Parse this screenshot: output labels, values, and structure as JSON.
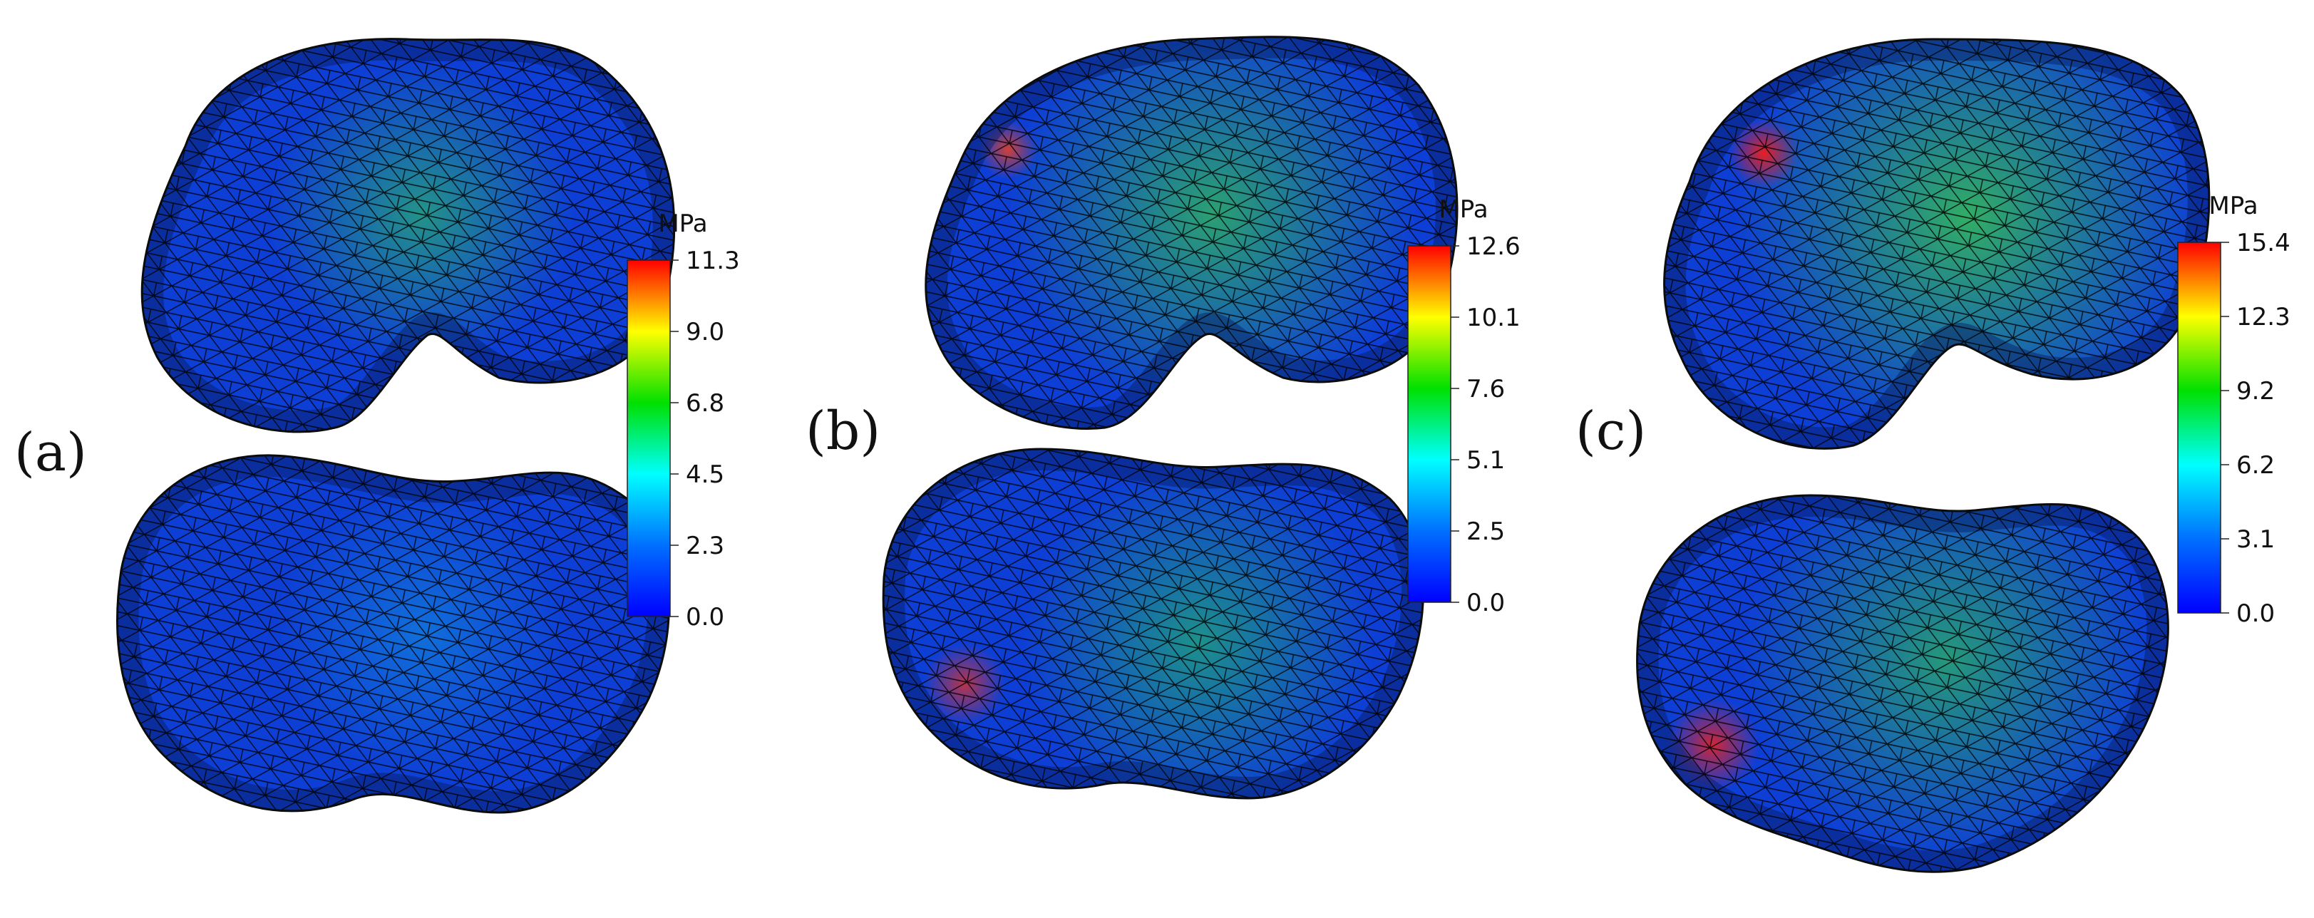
{
  "panels": [
    {
      "label": "(a)",
      "unit": "MPa",
      "ticks": [
        "11.3",
        "9.0",
        "6.8",
        "4.5",
        "2.3",
        "0.0"
      ],
      "max": 11.3,
      "hotspots": {
        "femur": [
          [
            0.55,
            0.45,
            0.26,
            "#36d64a",
            0.55
          ]
        ],
        "tibia": [
          [
            0.55,
            0.45,
            0.25,
            "#19c7e0",
            0.35
          ]
        ]
      }
    },
    {
      "label": "(b)",
      "unit": "MPa",
      "ticks": [
        "12.6",
        "10.1",
        "7.6",
        "5.1",
        "2.5",
        "0.0"
      ],
      "max": 12.6,
      "hotspots": {
        "femur": [
          [
            0.55,
            0.45,
            0.35,
            "#3fe030",
            0.6
          ],
          [
            0.2,
            0.3,
            0.05,
            "#ff4010",
            0.8
          ]
        ],
        "tibia": [
          [
            0.55,
            0.5,
            0.3,
            "#2ee040",
            0.5
          ],
          [
            0.15,
            0.6,
            0.07,
            "#ff3010",
            0.7
          ]
        ]
      }
    },
    {
      "label": "(c)",
      "unit": "MPa",
      "ticks": [
        "15.4",
        "12.3",
        "9.2",
        "6.2",
        "3.1",
        "0.0"
      ],
      "max": 15.4,
      "hotspots": {
        "femur": [
          [
            0.55,
            0.45,
            0.4,
            "#44e828",
            0.65
          ],
          [
            0.2,
            0.3,
            0.06,
            "#ff1a10",
            0.9
          ]
        ],
        "tibia": [
          [
            0.55,
            0.45,
            0.35,
            "#3ae030",
            0.55
          ],
          [
            0.15,
            0.65,
            0.08,
            "#ff2010",
            0.8
          ]
        ]
      }
    }
  ]
}
